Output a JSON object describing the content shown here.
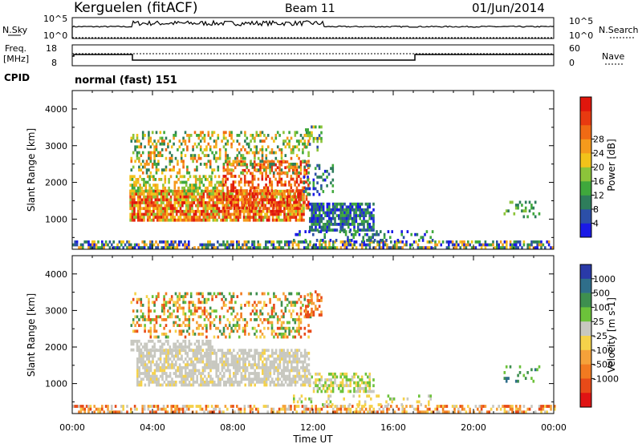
{
  "header": {
    "station": "Kerguelen (fitACF)",
    "beam": "Beam 11",
    "date": "01/Jun/2014"
  },
  "noise_panel": {
    "left_label": "N.Sky",
    "left_ticks": [
      "10^5",
      "10^0"
    ],
    "right_label": "N.Search",
    "right_ticks": [
      "10^5",
      "10^0"
    ]
  },
  "freq_panel": {
    "left_label_line1": "Freq.",
    "left_label_line2": "[MHz]",
    "left_ticks": [
      "18",
      "8"
    ],
    "right_label": "Nave",
    "right_ticks": [
      "60",
      "0"
    ]
  },
  "cpid": {
    "label": "CPID",
    "value": "normal (fast) 151"
  },
  "chart_data": [
    {
      "type": "heatmap",
      "quantity": "Power",
      "ylabel": "Slant Range [km]",
      "ylim": [
        180,
        4500
      ],
      "yticks": [
        "1000",
        "2000",
        "3000",
        "4000"
      ],
      "xlim_hours": [
        0,
        24
      ],
      "colorbar": {
        "label": "Power [dB]",
        "tick_labels": [
          "4",
          "8",
          "12",
          "16",
          "20",
          "24",
          "28"
        ],
        "colors": [
          "#1a1ae6",
          "#2c4fa8",
          "#2e7d5b",
          "#3fa83c",
          "#8cc43a",
          "#f2c21a",
          "#f59a1c",
          "#f06a14",
          "#e83a10",
          "#e0160c"
        ]
      },
      "regions": [
        {
          "t": [
            2.85,
            11.5
          ],
          "r": [
            1000,
            1800
          ],
          "c": [
            5,
            6,
            7,
            8,
            9,
            4
          ],
          "d": 0.85
        },
        {
          "t": [
            2.85,
            7.5
          ],
          "r": [
            1700,
            2200
          ],
          "c": [
            3,
            4,
            5,
            6
          ],
          "d": 0.55
        },
        {
          "t": [
            7.5,
            11.8
          ],
          "r": [
            1300,
            2600
          ],
          "c": [
            6,
            7,
            8,
            9
          ],
          "d": 0.45
        },
        {
          "t": [
            2.9,
            11.8
          ],
          "r": [
            2300,
            3400
          ],
          "c": [
            3,
            4,
            5,
            6,
            7,
            2
          ],
          "d": 0.35
        },
        {
          "t": [
            11.6,
            12.4
          ],
          "r": [
            2900,
            3550
          ],
          "c": [
            3,
            4,
            5,
            1
          ],
          "d": 0.45
        },
        {
          "t": [
            11.5,
            13.0
          ],
          "r": [
            1700,
            2500
          ],
          "c": [
            1,
            2,
            3,
            0
          ],
          "d": 0.3
        },
        {
          "t": [
            11.8,
            15.0
          ],
          "r": [
            700,
            1450
          ],
          "c": [
            1,
            2,
            3,
            0
          ],
          "d": 0.75
        },
        {
          "t": [
            0.0,
            24.0
          ],
          "r": [
            200,
            420
          ],
          "c": [
            0,
            1,
            2,
            3,
            5,
            6
          ],
          "d": 0.6
        },
        {
          "t": [
            11.0,
            18.0
          ],
          "r": [
            420,
            700
          ],
          "c": [
            0,
            1,
            2,
            3
          ],
          "d": 0.22
        },
        {
          "t": [
            21.5,
            23.3
          ],
          "r": [
            1100,
            1500
          ],
          "c": [
            2,
            3,
            4
          ],
          "d": 0.25
        }
      ]
    },
    {
      "type": "heatmap",
      "quantity": "Velocity",
      "ylabel": "Slant Range [km]",
      "ylim": [
        180,
        4500
      ],
      "yticks": [
        "1000",
        "2000",
        "3000",
        "4000"
      ],
      "xlim_hours": [
        0,
        24
      ],
      "colorbar": {
        "label": "Velocity [m s-1]",
        "tick_labels": [
          "1000",
          "500",
          "100",
          "25",
          "-25",
          "-100",
          "-500",
          "-1000"
        ],
        "colors": [
          "#2a3aa8",
          "#2f6e8a",
          "#3e8f4f",
          "#6cc23a",
          "#c8c8c0",
          "#f5d24a",
          "#f5a23a",
          "#f27a20",
          "#e84a18",
          "#e01414"
        ]
      },
      "regions": [
        {
          "t": [
            3.2,
            11.8
          ],
          "r": [
            1000,
            1950
          ],
          "c": [
            4,
            4,
            4,
            4,
            4,
            4,
            5
          ],
          "d": 0.7
        },
        {
          "t": [
            2.9,
            7.0
          ],
          "r": [
            1950,
            2200
          ],
          "c": [
            4,
            4,
            4
          ],
          "d": 0.5
        },
        {
          "t": [
            2.9,
            11.9
          ],
          "r": [
            2300,
            3500
          ],
          "c": [
            6,
            7,
            8,
            5,
            3,
            2
          ],
          "d": 0.33
        },
        {
          "t": [
            11.6,
            12.4
          ],
          "r": [
            2900,
            3550
          ],
          "c": [
            6,
            7,
            8
          ],
          "d": 0.45
        },
        {
          "t": [
            11.8,
            15.0
          ],
          "r": [
            750,
            1300
          ],
          "c": [
            3,
            4,
            5
          ],
          "d": 0.55
        },
        {
          "t": [
            0.0,
            24.0
          ],
          "r": [
            200,
            420
          ],
          "c": [
            5,
            6,
            4,
            8,
            7
          ],
          "d": 0.5
        },
        {
          "t": [
            11.0,
            18.0
          ],
          "r": [
            420,
            700
          ],
          "c": [
            4,
            5,
            3
          ],
          "d": 0.22
        },
        {
          "t": [
            21.5,
            23.3
          ],
          "r": [
            1100,
            1500
          ],
          "c": [
            1,
            2,
            3
          ],
          "d": 0.25
        }
      ]
    }
  ],
  "x_axis": {
    "tick_labels": [
      "00:00",
      "04:00",
      "08:00",
      "12:00",
      "16:00",
      "20:00",
      "00:00"
    ],
    "label": "Time UT"
  }
}
